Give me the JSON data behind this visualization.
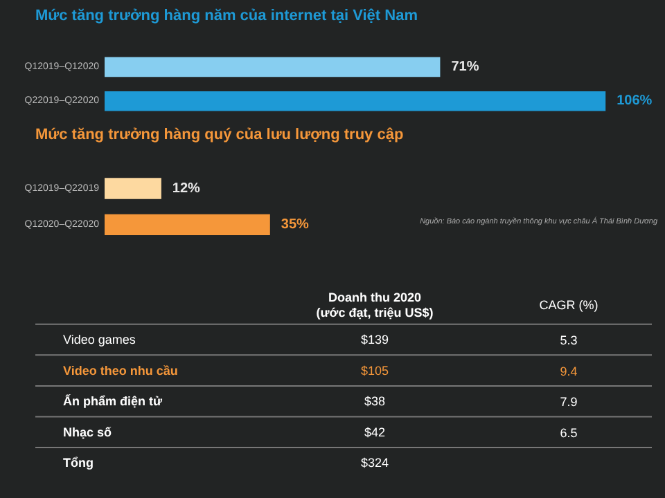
{
  "chart_data": [
    {
      "type": "bar",
      "orientation": "horizontal",
      "title": "Mức tăng trưởng hàng năm của internet tại Việt Nam",
      "categories": [
        "Q12019–Q12020",
        "Q22019–Q22020"
      ],
      "values": [
        71,
        106
      ],
      "colors": [
        "#87cef0",
        "#1e9ad6"
      ],
      "value_labels": [
        "71%",
        "106%"
      ]
    },
    {
      "type": "bar",
      "orientation": "horizontal",
      "title": "Mức tăng trưởng hàng quý của lưu lượng truy cập",
      "categories": [
        "Q12019–Q22019",
        "Q12020–Q22020"
      ],
      "values": [
        12,
        35
      ],
      "colors": [
        "#fdd9a0",
        "#f5973a"
      ],
      "value_labels": [
        "12%",
        "35%"
      ],
      "annotations": [
        "Nguồn: Báo cáo ngành truyền thông khu vực châu Á Thái Bình Dương"
      ]
    },
    {
      "type": "other",
      "categories": [
        "Video games",
        "Video theo nhu cầu",
        "Ấn phẩm điện tử",
        "Nhạc số",
        "Tổng"
      ],
      "colors": [
        "#ffffff",
        "#f5973a",
        "#ffffff",
        "#ffffff",
        "#ffffff"
      ],
      "series": [
        {
          "name": "Doanh thu 2020\n(ước đạt, triệu US$)",
          "values": [
            139,
            105,
            38,
            42,
            324
          ],
          "value_labels": [
            "$139",
            "$105",
            "$38",
            "$42",
            "$324"
          ]
        },
        {
          "name": "CAGR (%)",
          "values": [
            5.3,
            9.4,
            7.9,
            6.5,
            null
          ],
          "value_labels": [
            "5.3",
            "9.4",
            "7.9",
            "6.5",
            null
          ]
        }
      ]
    }
  ]
}
